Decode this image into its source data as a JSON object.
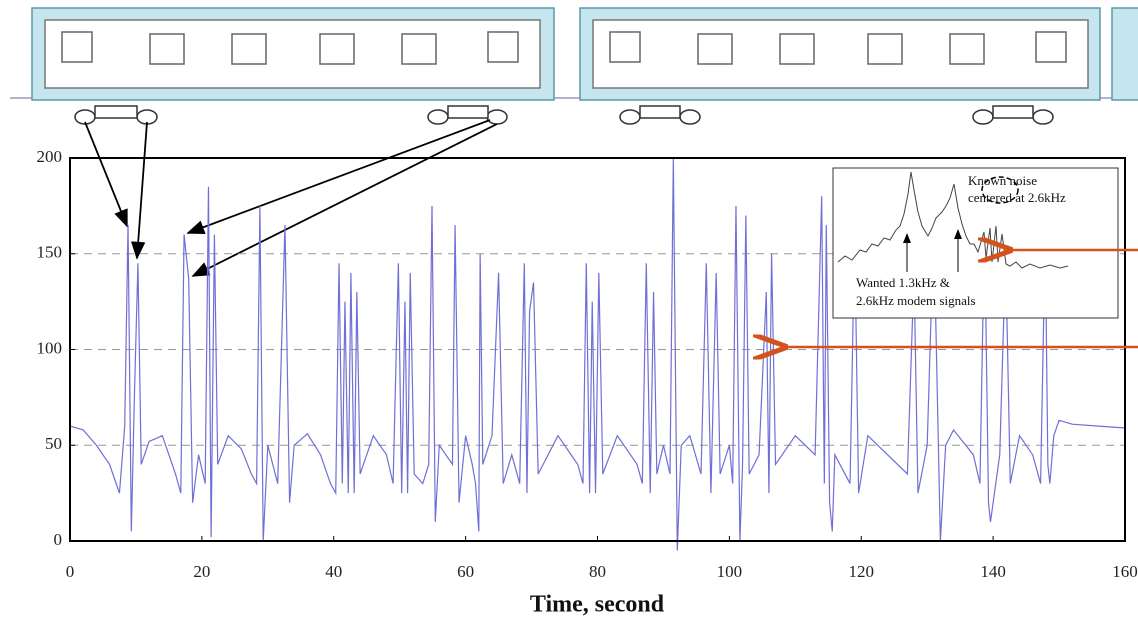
{
  "chart_data": {
    "type": "line",
    "x": [
      0,
      2,
      4,
      6,
      7.5,
      8.3,
      8.8,
      9.3,
      9.8,
      10.3,
      10.8,
      12,
      14,
      16,
      16.8,
      17.3,
      18,
      18.6,
      19.5,
      20.5,
      21,
      21.4,
      21.9,
      22.4,
      24,
      26,
      27.5,
      28.3,
      28.8,
      29.3,
      30,
      31.5,
      32.6,
      33.3,
      34,
      36,
      38,
      39.5,
      40.3,
      40.8,
      41.3,
      41.7,
      42.2,
      42.6,
      43.1,
      43.5,
      44,
      46,
      48,
      49,
      49.8,
      50.3,
      50.8,
      51.2,
      51.6,
      52.2,
      53.5,
      54.4,
      54.9,
      55.4,
      56,
      58,
      58.4,
      59,
      60,
      61,
      61.5,
      62,
      62.2,
      62.6,
      64,
      65,
      65.7,
      67,
      68.2,
      68.9,
      69.3,
      69.7,
      70.3,
      71,
      74,
      77,
      77.8,
      78.3,
      78.8,
      79.2,
      79.7,
      80.2,
      80.8,
      83,
      86,
      86.8,
      87.4,
      88,
      88.5,
      89,
      90,
      91,
      91.5,
      92.1,
      92.7,
      94,
      95.7,
      96.5,
      97.2,
      98,
      98.6,
      100,
      100.5,
      101,
      101.6,
      102,
      102.5,
      103,
      104.5,
      105.6,
      106,
      106.4,
      107,
      110,
      113,
      114,
      114.4,
      114.7,
      115.2,
      115.6,
      116,
      118.3,
      119,
      119.6,
      121,
      124,
      127,
      128,
      128.6,
      130,
      131,
      132,
      132.8,
      134,
      137,
      138,
      138.7,
      139.3,
      139.6,
      141,
      141.9,
      142.6,
      144,
      146,
      147.2,
      147.9,
      148.3,
      148.6,
      149.2,
      150,
      152,
      156,
      160
    ],
    "series": [
      {
        "color": "#6f6fd6",
        "values": [
          60,
          58,
          50,
          40,
          25,
          60,
          165,
          5,
          80,
          145,
          40,
          52,
          55,
          35,
          25,
          160,
          137,
          20,
          45,
          30,
          185,
          2,
          160,
          40,
          55,
          48,
          35,
          30,
          175,
          0,
          50,
          30,
          165,
          20,
          50,
          56,
          45,
          30,
          25,
          145,
          30,
          125,
          25,
          140,
          25,
          130,
          35,
          55,
          45,
          30,
          145,
          25,
          125,
          25,
          140,
          35,
          30,
          40,
          175,
          10,
          50,
          40,
          165,
          20,
          55,
          40,
          30,
          5,
          150,
          40,
          55,
          140,
          30,
          45,
          30,
          145,
          25,
          120,
          135,
          35,
          55,
          40,
          30,
          145,
          25,
          125,
          25,
          140,
          35,
          55,
          40,
          30,
          145,
          25,
          130,
          35,
          50,
          35,
          200,
          -5,
          50,
          55,
          35,
          145,
          25,
          140,
          35,
          50,
          30,
          175,
          0,
          40,
          170,
          35,
          45,
          130,
          25,
          150,
          40,
          55,
          45,
          180,
          30,
          165,
          20,
          5,
          45,
          30,
          160,
          25,
          55,
          45,
          35,
          140,
          25,
          50,
          165,
          0,
          50,
          58,
          45,
          30,
          165,
          20,
          10,
          45,
          150,
          30,
          55,
          45,
          30,
          160,
          40,
          30,
          55,
          63,
          61,
          60,
          59
        ]
      }
    ],
    "xlim": [
      0,
      160
    ],
    "ylim": [
      0,
      200
    ],
    "xticks": [
      0,
      20,
      40,
      60,
      80,
      100,
      120,
      140,
      160
    ],
    "yticks": [
      0,
      50,
      100,
      150,
      200
    ],
    "xlabel": "Time, second",
    "grid": true,
    "annotations": [
      "Known noise",
      "centered at 2.6kHz",
      "Wanted 1.3kHz &",
      "2.6kHz modem signals"
    ]
  }
}
